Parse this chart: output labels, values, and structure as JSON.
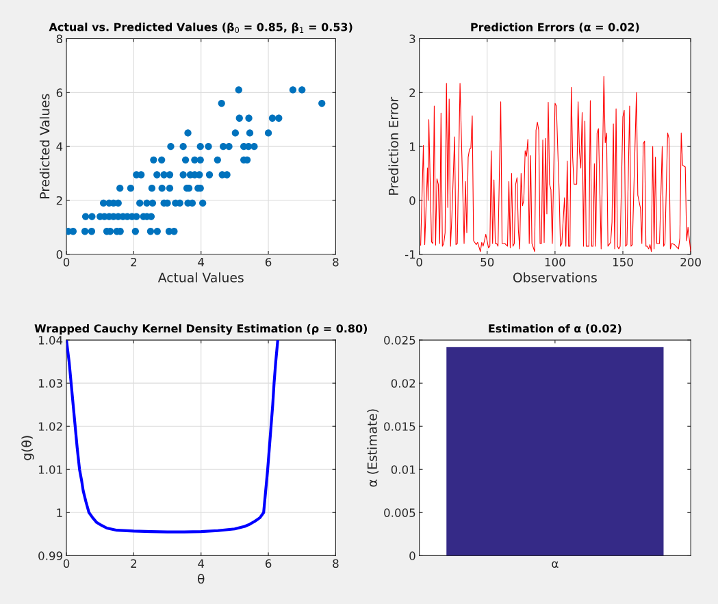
{
  "chart_data": [
    {
      "type": "scatter",
      "title": "Actual vs. Predicted Values (β$_{0}$ = 0.85, β$_{1}$ = 0.53)",
      "xlabel": "Actual Values",
      "ylabel": "Predicted Values",
      "xlim": [
        0,
        8
      ],
      "ylim": [
        0,
        8
      ],
      "xticks": [
        0,
        2,
        4,
        6,
        8
      ],
      "yticks": [
        0,
        2,
        4,
        6,
        8
      ],
      "grid": true,
      "marker": "circle",
      "series": [
        {
          "color": "#0072bd",
          "x": [
            0.05,
            0.2,
            0.55,
            0.75,
            1.2,
            1.3,
            1.5,
            1.6,
            2.05,
            2.5,
            2.7,
            3.05,
            3.2,
            0.57,
            0.76,
            1.0,
            1.13,
            1.27,
            1.4,
            1.54,
            1.68,
            1.81,
            1.95,
            2.08,
            2.29,
            2.39,
            2.52,
            1.1,
            1.27,
            1.4,
            1.54,
            2.18,
            2.39,
            2.56,
            2.9,
            3.0,
            3.24,
            3.37,
            3.61,
            3.74,
            4.05,
            1.59,
            1.91,
            2.54,
            2.84,
            3.07,
            3.58,
            3.64,
            3.91,
            3.98,
            2.08,
            2.22,
            2.69,
            2.9,
            3.07,
            3.47,
            3.68,
            3.81,
            3.95,
            4.25,
            4.63,
            4.77,
            2.59,
            2.83,
            3.54,
            3.81,
            3.98,
            4.49,
            5.27,
            5.37,
            3.1,
            3.47,
            3.98,
            4.22,
            4.66,
            4.83,
            5.27,
            5.41,
            5.58,
            3.61,
            5.02,
            5.45,
            6.0,
            5.14,
            5.42,
            6.12,
            6.31,
            4.61,
            7.59,
            5.12,
            6.73,
            7.0
          ],
          "values": [
            0.85,
            0.85,
            0.85,
            0.85,
            0.85,
            0.85,
            0.85,
            0.85,
            0.85,
            0.85,
            0.85,
            0.85,
            0.85,
            1.4,
            1.4,
            1.4,
            1.4,
            1.4,
            1.4,
            1.4,
            1.4,
            1.4,
            1.4,
            1.4,
            1.4,
            1.4,
            1.4,
            1.9,
            1.9,
            1.9,
            1.9,
            1.9,
            1.9,
            1.9,
            1.9,
            1.9,
            1.9,
            1.9,
            1.9,
            1.9,
            1.9,
            2.45,
            2.45,
            2.45,
            2.45,
            2.45,
            2.45,
            2.45,
            2.45,
            2.45,
            2.95,
            2.95,
            2.95,
            2.95,
            2.95,
            2.95,
            2.95,
            2.95,
            2.95,
            2.95,
            2.95,
            2.95,
            3.5,
            3.5,
            3.5,
            3.5,
            3.5,
            3.5,
            3.5,
            3.5,
            4.0,
            4.0,
            4.0,
            4.0,
            4.0,
            4.0,
            4.0,
            4.0,
            4.0,
            4.5,
            4.5,
            4.5,
            4.5,
            5.05,
            5.05,
            5.05,
            5.05,
            5.6,
            5.6,
            6.1,
            6.1,
            6.1
          ]
        }
      ]
    },
    {
      "type": "line",
      "title": "Prediction Errors (α = 0.02)",
      "xlabel": "Observations",
      "ylabel": "Prediction Error",
      "xlim": [
        0,
        200
      ],
      "ylim": [
        -1,
        3
      ],
      "xticks": [
        0,
        50,
        100,
        150,
        200
      ],
      "yticks": [
        -1,
        0,
        1,
        2,
        3
      ],
      "grid": true,
      "marker": "none",
      "line_style": "solid",
      "series": [
        {
          "color": "#ff0000",
          "x": [
            1,
            3,
            4,
            6,
            6.5,
            7,
            9,
            10,
            11,
            12,
            13,
            14,
            15,
            16,
            17,
            18,
            19,
            20,
            21,
            22,
            23,
            24,
            26,
            27,
            28,
            30,
            33,
            34,
            35,
            36,
            37,
            38,
            39,
            40,
            42,
            43,
            45,
            46,
            47,
            48,
            49,
            51,
            52,
            53,
            54,
            55,
            56,
            57,
            58,
            60,
            61,
            63,
            65,
            66,
            67,
            68,
            69,
            70,
            71,
            72,
            73,
            74,
            75,
            76,
            77,
            78,
            79,
            80,
            81,
            82,
            83,
            85,
            86,
            87,
            88,
            89,
            90,
            91,
            92,
            93,
            94,
            95,
            96,
            97,
            98,
            100,
            101,
            103,
            104,
            105,
            107,
            108,
            109,
            110,
            111,
            112,
            113,
            114,
            116,
            117,
            118,
            119,
            120,
            121,
            122,
            123,
            125,
            126,
            127,
            128,
            129,
            130,
            131,
            132,
            134,
            136,
            137,
            138,
            139,
            141,
            142,
            143,
            144,
            145,
            146,
            147,
            148,
            150,
            151,
            152,
            153,
            155,
            156,
            157,
            160,
            161,
            163,
            164,
            165,
            166,
            167,
            168,
            169,
            170,
            171,
            172,
            173,
            174,
            175,
            177,
            179,
            180,
            181,
            183,
            184,
            185,
            186,
            188,
            191,
            192,
            193,
            194,
            196,
            197,
            198,
            200
          ],
          "values": [
            -0.83,
            1.02,
            -0.82,
            0.6,
            0.0,
            1.5,
            -0.77,
            -0.8,
            1.75,
            -0.83,
            0.4,
            0.3,
            -0.8,
            1.62,
            -0.85,
            -0.8,
            -0.6,
            2.17,
            -0.13,
            1.88,
            -0.85,
            -0.3,
            1.18,
            -0.82,
            -0.8,
            2.17,
            -0.8,
            0.35,
            -0.6,
            0.8,
            0.95,
            0.97,
            1.57,
            -0.75,
            -0.82,
            -0.78,
            -0.95,
            -0.78,
            -0.85,
            -0.75,
            -0.63,
            -0.88,
            -0.85,
            0.92,
            -0.8,
            0.38,
            -0.8,
            -0.8,
            -0.85,
            1.83,
            -0.8,
            -0.8,
            -0.85,
            0.35,
            -0.88,
            0.5,
            -0.85,
            -0.8,
            0.3,
            0.42,
            -0.55,
            -0.9,
            0.5,
            -0.1,
            0.0,
            0.92,
            0.82,
            1.13,
            -0.8,
            0.83,
            -0.8,
            -0.95,
            1.3,
            1.45,
            1.3,
            -0.8,
            -0.8,
            1.12,
            -0.78,
            1.15,
            -0.25,
            1.82,
            0.3,
            0.2,
            -0.8,
            1.8,
            1.75,
            0.2,
            -0.85,
            -0.8,
            0.05,
            -0.85,
            0.73,
            -0.85,
            -0.85,
            2.1,
            0.8,
            0.3,
            0.3,
            1.83,
            0.9,
            0.6,
            1.63,
            -0.85,
            1.47,
            -0.85,
            -0.85,
            1.85,
            -0.85,
            -0.85,
            0.68,
            -0.85,
            1.25,
            1.33,
            -0.9,
            2.3,
            1.07,
            1.25,
            -0.85,
            -0.78,
            -0.4,
            1.42,
            -0.9,
            1.7,
            -0.85,
            -0.9,
            -0.85,
            1.55,
            1.67,
            -0.85,
            -0.82,
            1.75,
            -0.85,
            -0.82,
            2.0,
            0.1,
            -0.15,
            -0.8,
            1.05,
            1.1,
            -0.85,
            -0.85,
            -0.9,
            -0.82,
            -0.95,
            1.0,
            -0.9,
            0.8,
            -0.8,
            -0.8,
            1.0,
            -0.85,
            -0.8,
            1.25,
            1.15,
            -0.9,
            -0.8,
            -0.82,
            -0.9,
            -0.7,
            1.25,
            0.65,
            0.62,
            -0.75,
            -0.5,
            -0.95
          ]
        }
      ]
    },
    {
      "type": "line",
      "title": "Wrapped Cauchy Kernel Density Estimation (ρ = 0.80)",
      "xlabel": "θ",
      "ylabel": "g(θ)",
      "xlim": [
        0,
        8
      ],
      "ylim": [
        0.99,
        1.04
      ],
      "xticks": [
        0,
        2,
        4,
        6,
        8
      ],
      "yticks": [
        0.99,
        1,
        1.01,
        1.02,
        1.03,
        1.04
      ],
      "grid": true,
      "marker": "none",
      "line_style": "solid",
      "series": [
        {
          "color": "#0000ff",
          "x": [
            0,
            0.08,
            0.14,
            0.2,
            0.26,
            0.32,
            0.39,
            0.45,
            0.5,
            0.58,
            0.67,
            0.78,
            0.9,
            1.05,
            1.2,
            1.5,
            2,
            2.5,
            3,
            3.5,
            4,
            4.5,
            5,
            5.3,
            5.45,
            5.6,
            5.75,
            5.86,
            5.92,
            5.98,
            6.03,
            6.08,
            6.13,
            6.17,
            6.22,
            6.28
          ],
          "values": [
            1.04,
            1.035,
            1.03,
            1.025,
            1.02,
            1.015,
            1.01,
            1.0075,
            1.005,
            1.0025,
            1.0,
            0.9988,
            0.9977,
            0.997,
            0.9964,
            0.9959,
            0.9957,
            0.9956,
            0.9955,
            0.9955,
            0.9956,
            0.9958,
            0.9962,
            0.9968,
            0.9973,
            0.998,
            0.9988,
            1.0,
            1.005,
            1.01,
            1.015,
            1.02,
            1.025,
            1.03,
            1.035,
            1.04
          ]
        }
      ]
    },
    {
      "type": "bar",
      "title": "Estimation of α (0.02)",
      "ylabel": "α (Estimate)",
      "ylim": [
        0,
        0.025
      ],
      "yticks": [
        0,
        0.005,
        0.01,
        0.015,
        0.02,
        0.025
      ],
      "grid": false,
      "categories": [
        "α"
      ],
      "series": [
        {
          "color": "#352a87",
          "values": [
            0.0242
          ]
        }
      ]
    }
  ]
}
